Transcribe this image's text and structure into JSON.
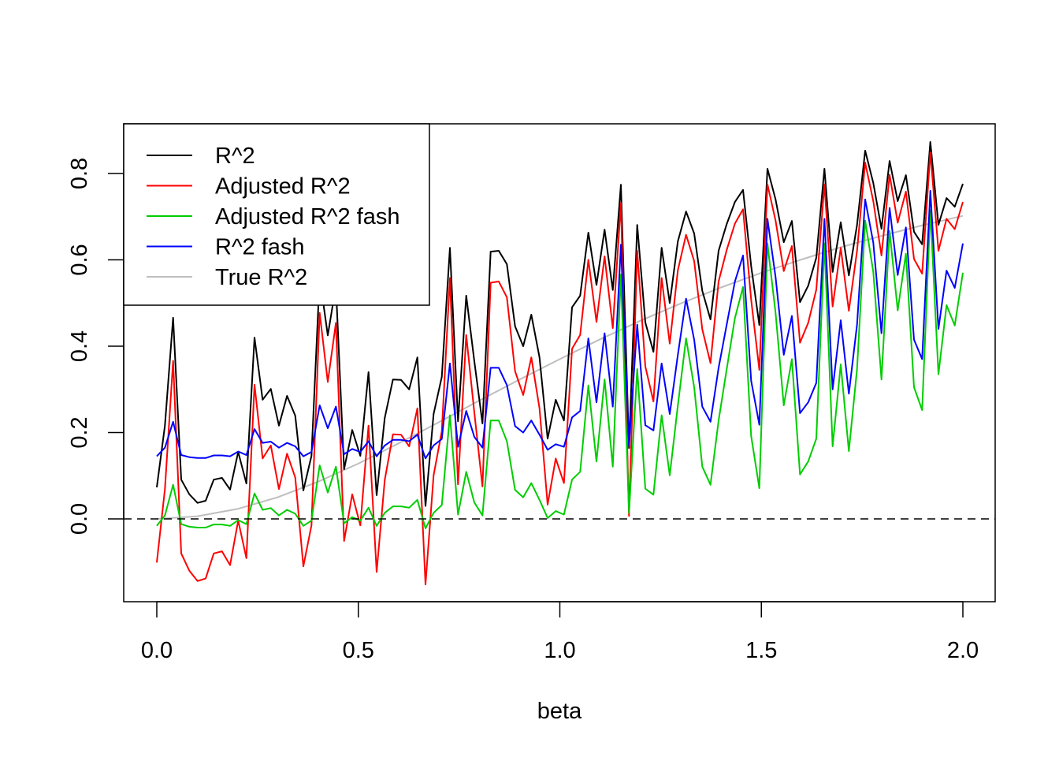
{
  "chart_data": {
    "type": "line",
    "title": "",
    "xlabel": "beta",
    "ylabel": "",
    "xlim": [
      0,
      2
    ],
    "ylim": [
      -0.15,
      0.88
    ],
    "x_range": [
      0,
      2
    ],
    "x_ticks": [
      "0.0",
      "0.5",
      "1.0",
      "1.5",
      "2.0"
    ],
    "x_tick_values": [
      0,
      0.5,
      1.0,
      1.5,
      2.0
    ],
    "y_ticks": [
      "0.0",
      "0.2",
      "0.4",
      "0.6",
      "0.8"
    ],
    "y_tick_values": [
      0,
      0.2,
      0.4,
      0.6,
      0.8
    ],
    "grid": false,
    "legend_position": "top-left",
    "reference_line": {
      "y": 0,
      "style": "dashed",
      "color": "#000000"
    },
    "series": [
      {
        "name": "R^2",
        "color": "#000000",
        "values": [
          0.073,
          0.216,
          0.466,
          0.091,
          0.057,
          0.037,
          0.042,
          0.091,
          0.095,
          0.068,
          0.155,
          0.082,
          0.42,
          0.276,
          0.301,
          0.216,
          0.285,
          0.239,
          0.066,
          0.146,
          0.56,
          0.425,
          0.54,
          0.115,
          0.206,
          0.146,
          0.34,
          0.055,
          0.234,
          0.323,
          0.322,
          0.3,
          0.374,
          0.03,
          0.243,
          0.329,
          0.628,
          0.226,
          0.517,
          0.365,
          0.221,
          0.619,
          0.621,
          0.59,
          0.446,
          0.4,
          0.473,
          0.374,
          0.186,
          0.276,
          0.228,
          0.49,
          0.517,
          0.663,
          0.542,
          0.67,
          0.53,
          0.774,
          0.164,
          0.681,
          0.455,
          0.387,
          0.628,
          0.5,
          0.643,
          0.712,
          0.661,
          0.528,
          0.462,
          0.621,
          0.683,
          0.734,
          0.762,
          0.586,
          0.449,
          0.811,
          0.74,
          0.641,
          0.69,
          0.502,
          0.54,
          0.605,
          0.811,
          0.572,
          0.687,
          0.564,
          0.681,
          0.853,
          0.778,
          0.672,
          0.829,
          0.736,
          0.796,
          0.665,
          0.636,
          0.873,
          0.681,
          0.743,
          0.723,
          0.776
        ]
      },
      {
        "name": "Adjusted R^2",
        "color": "#ff0000",
        "values": [
          -0.101,
          0.069,
          0.366,
          -0.08,
          -0.12,
          -0.144,
          -0.138,
          -0.08,
          -0.075,
          -0.107,
          -0.004,
          -0.091,
          0.311,
          0.14,
          0.17,
          0.069,
          0.151,
          0.096,
          -0.11,
          -0.015,
          0.477,
          0.317,
          0.454,
          -0.051,
          0.057,
          -0.015,
          0.216,
          -0.123,
          0.09,
          0.196,
          0.195,
          0.168,
          0.256,
          -0.152,
          0.101,
          0.203,
          0.558,
          0.08,
          0.426,
          0.246,
          0.075,
          0.547,
          0.55,
          0.513,
          0.342,
          0.287,
          0.374,
          0.256,
          0.033,
          0.14,
          0.083,
          0.394,
          0.426,
          0.6,
          0.456,
          0.608,
          0.442,
          0.732,
          0.007,
          0.621,
          0.353,
          0.272,
          0.558,
          0.406,
          0.576,
          0.658,
          0.597,
          0.439,
          0.361,
          0.55,
          0.623,
          0.684,
          0.717,
          0.508,
          0.345,
          0.775,
          0.691,
          0.574,
          0.632,
          0.408,
          0.454,
          0.531,
          0.775,
          0.492,
          0.628,
          0.482,
          0.621,
          0.825,
          0.736,
          0.61,
          0.797,
          0.686,
          0.758,
          0.602,
          0.568,
          0.849,
          0.621,
          0.695,
          0.671,
          0.734
        ]
      },
      {
        "name": "Adjusted R^2 fash",
        "color": "#00cd00",
        "values": [
          -0.016,
          0.008,
          0.079,
          -0.012,
          -0.018,
          -0.02,
          -0.02,
          -0.013,
          -0.013,
          -0.016,
          -0.003,
          -0.012,
          0.059,
          0.021,
          0.025,
          0.008,
          0.021,
          0.012,
          -0.016,
          -0.004,
          0.124,
          0.061,
          0.121,
          -0.01,
          0.004,
          -0.004,
          0.026,
          -0.016,
          0.014,
          0.029,
          0.029,
          0.026,
          0.044,
          -0.022,
          0.014,
          0.032,
          0.24,
          0.01,
          0.109,
          0.038,
          0.008,
          0.228,
          0.228,
          0.18,
          0.067,
          0.05,
          0.083,
          0.044,
          0.002,
          0.018,
          0.01,
          0.091,
          0.109,
          0.309,
          0.133,
          0.323,
          0.121,
          0.566,
          0.014,
          0.347,
          0.07,
          0.056,
          0.24,
          0.101,
          0.263,
          0.418,
          0.305,
          0.121,
          0.079,
          0.228,
          0.347,
          0.465,
          0.537,
          0.192,
          0.071,
          0.638,
          0.477,
          0.263,
          0.37,
          0.103,
          0.133,
          0.186,
          0.638,
          0.168,
          0.358,
          0.157,
          0.347,
          0.691,
          0.572,
          0.323,
          0.667,
          0.483,
          0.614,
          0.305,
          0.252,
          0.715,
          0.335,
          0.495,
          0.448,
          0.57
        ]
      },
      {
        "name": "R^2 fash",
        "color": "#0000ff",
        "values": [
          0.145,
          0.165,
          0.225,
          0.148,
          0.143,
          0.141,
          0.141,
          0.147,
          0.147,
          0.145,
          0.156,
          0.148,
          0.208,
          0.176,
          0.179,
          0.165,
          0.176,
          0.168,
          0.145,
          0.155,
          0.263,
          0.21,
          0.26,
          0.15,
          0.162,
          0.155,
          0.18,
          0.145,
          0.17,
          0.183,
          0.183,
          0.18,
          0.195,
          0.14,
          0.17,
          0.185,
          0.36,
          0.167,
          0.25,
          0.19,
          0.165,
          0.35,
          0.35,
          0.31,
          0.215,
          0.2,
          0.228,
          0.195,
          0.16,
          0.173,
          0.167,
          0.235,
          0.25,
          0.418,
          0.27,
          0.43,
          0.26,
          0.635,
          0.17,
          0.45,
          0.217,
          0.205,
          0.36,
          0.243,
          0.38,
          0.51,
          0.415,
          0.26,
          0.225,
          0.35,
          0.45,
          0.55,
          0.61,
          0.32,
          0.218,
          0.695,
          0.56,
          0.38,
          0.47,
          0.245,
          0.27,
          0.315,
          0.695,
          0.3,
          0.46,
          0.29,
          0.45,
          0.74,
          0.64,
          0.43,
          0.72,
          0.565,
          0.675,
          0.415,
          0.37,
          0.76,
          0.44,
          0.575,
          0.535,
          0.638
        ]
      },
      {
        "name": "True R^2",
        "color": "#bebebe",
        "x": [
          0,
          0.1,
          0.2,
          0.3,
          0.4,
          0.5,
          0.6,
          0.7,
          0.8,
          0.9,
          1.0,
          1.1,
          1.2,
          1.3,
          1.4,
          1.5,
          1.6,
          1.7,
          1.8,
          1.9,
          2.0
        ],
        "values": [
          0,
          0.006,
          0.023,
          0.05,
          0.086,
          0.128,
          0.175,
          0.224,
          0.274,
          0.323,
          0.37,
          0.416,
          0.459,
          0.499,
          0.536,
          0.57,
          0.601,
          0.63,
          0.656,
          0.68,
          0.702
        ]
      }
    ]
  }
}
